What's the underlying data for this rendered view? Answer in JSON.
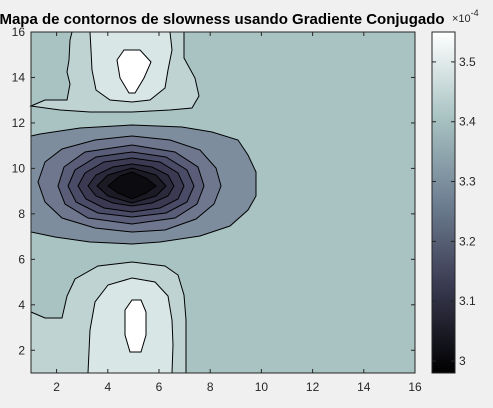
{
  "chart_data": {
    "type": "contour",
    "title": "Mapa de contornos de slowness usando Gradiente Conjugado",
    "xlim": [
      1,
      16
    ],
    "ylim": [
      1,
      16
    ],
    "x_ticks": [
      "2",
      "4",
      "6",
      "8",
      "10",
      "12",
      "14",
      "16"
    ],
    "y_ticks": [
      "2",
      "4",
      "6",
      "8",
      "10",
      "12",
      "14",
      "16"
    ],
    "grid": false,
    "colormap": "bone",
    "background_level_color": "#a9c3c3",
    "colorbar": {
      "position": "right",
      "range": [
        2.98,
        3.55
      ],
      "multiplier": "×10",
      "exponent": "-4",
      "tick_values": [
        3.0,
        3.1,
        3.2,
        3.3,
        3.4,
        3.5
      ],
      "tick_labels": [
        "3",
        "3.1",
        "3.2",
        "3.3",
        "3.4",
        "3.5"
      ]
    },
    "features": [
      {
        "kind": "minimum",
        "x": 5,
        "y": 9,
        "value": 2.98
      },
      {
        "kind": "maximum",
        "x": 5,
        "y": 14.5,
        "value": 3.55
      },
      {
        "kind": "maximum",
        "x": 5,
        "y": 3.5,
        "value": 3.55
      }
    ],
    "contour_levels": [
      3.0,
      3.05,
      3.1,
      3.15,
      3.2,
      3.25,
      3.3,
      3.35,
      3.4,
      3.45,
      3.5
    ]
  }
}
